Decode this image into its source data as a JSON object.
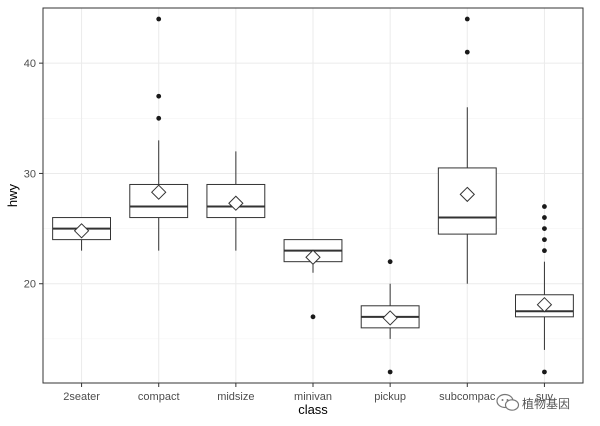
{
  "chart_data": {
    "type": "boxplot",
    "xlabel": "class",
    "ylabel": "hwy",
    "ylim": [
      11,
      45
    ],
    "yticks": [
      20,
      30,
      40
    ],
    "grid": true,
    "legend": "none",
    "categories": [
      "2seater",
      "compact",
      "midsize",
      "minivan",
      "pickup",
      "subcompact",
      "suv"
    ],
    "tick_labels": [
      "2seater",
      "compact",
      "midsize",
      "minivan",
      "pickup",
      "subcompac",
      "suv"
    ],
    "boxes": [
      {
        "category": "2seater",
        "min": 23,
        "q1": 24,
        "median": 25,
        "q3": 26,
        "max": 26,
        "mean": 24.8,
        "outliers": []
      },
      {
        "category": "compact",
        "min": 23,
        "q1": 26,
        "median": 27,
        "q3": 29,
        "max": 33,
        "mean": 28.3,
        "outliers": [
          35,
          37,
          44
        ]
      },
      {
        "category": "midsize",
        "min": 23,
        "q1": 26,
        "median": 27,
        "q3": 29,
        "max": 32,
        "mean": 27.3,
        "outliers": []
      },
      {
        "category": "minivan",
        "min": 21,
        "q1": 22,
        "median": 23,
        "q3": 24,
        "max": 24,
        "mean": 22.4,
        "outliers": [
          17
        ]
      },
      {
        "category": "pickup",
        "min": 15,
        "q1": 16,
        "median": 17,
        "q3": 18,
        "max": 20,
        "mean": 16.9,
        "outliers": [
          12,
          22
        ]
      },
      {
        "category": "subcompact",
        "min": 20,
        "q1": 24.5,
        "median": 26,
        "q3": 30.5,
        "max": 36,
        "mean": 28.1,
        "outliers": [
          41,
          44
        ]
      },
      {
        "category": "suv",
        "min": 14,
        "q1": 17,
        "median": 17.5,
        "q3": 19,
        "max": 22,
        "mean": 18.1,
        "outliers": [
          12,
          23,
          24,
          25,
          26,
          27
        ]
      }
    ],
    "colors": {
      "box_stroke": "#333333",
      "grid": "#ebebeb",
      "outlier": "#1a1a1a"
    }
  },
  "watermark": {
    "text": "植物基因",
    "icon": "wechat-icon"
  }
}
